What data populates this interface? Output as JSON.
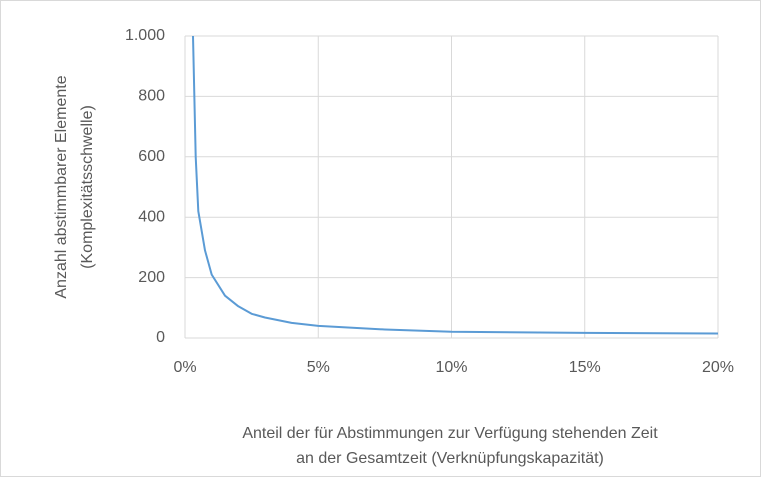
{
  "chart_data": {
    "type": "line",
    "ylabel": [
      "Anzahl abstimmbarer Elemente",
      "(Komplexitätsschwelle)"
    ],
    "xlabel": [
      "Anteil der für Abstimmungen zur Verfügung stehenden Zeit",
      "an der Gesamtzeit (Verknüpfungskapazität)"
    ],
    "x": [
      0.3,
      0.4,
      0.5,
      0.75,
      1,
      1.5,
      2,
      2.5,
      3,
      4,
      5,
      7.5,
      10,
      15,
      20
    ],
    "series": [
      {
        "name": "Komplexitätsschwelle",
        "color": "#5b9bd5",
        "values": [
          1000,
          600,
          420,
          290,
          210,
          140,
          105,
          80,
          68,
          50,
          40,
          28,
          21,
          17,
          15
        ]
      }
    ],
    "xlim": [
      0,
      20
    ],
    "xticks": [
      {
        "value": 0,
        "label": "0%"
      },
      {
        "value": 5,
        "label": "5%"
      },
      {
        "value": 10,
        "label": "10%"
      },
      {
        "value": 15,
        "label": "15%"
      },
      {
        "value": 20,
        "label": "20%"
      }
    ],
    "ylim": [
      0,
      1000
    ],
    "yticks": [
      0,
      200,
      400,
      600,
      800,
      {
        "value": 1000,
        "label": "1.000"
      }
    ],
    "grid": true
  }
}
